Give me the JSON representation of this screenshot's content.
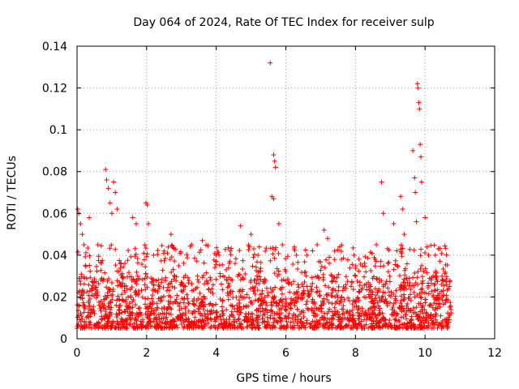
{
  "chart_data": {
    "type": "scatter",
    "title": "Day 064 of 2024, Rate Of TEC Index for receiver sulp",
    "xlabel": "GPS time / hours",
    "ylabel": "ROTI / TECUs",
    "xlim": [
      0,
      12
    ],
    "ylim": [
      0,
      0.14
    ],
    "xticks": [
      "0",
      "2",
      "4",
      "6",
      "8",
      "10",
      "12"
    ],
    "yticks": [
      "0",
      "0.02",
      "0.04",
      "0.06",
      "0.08",
      "0.1",
      "0.12",
      "0.14"
    ],
    "grid": true,
    "marker": "+",
    "color": "#ff0000",
    "series": [
      {
        "name": "ROTI",
        "time_range": [
          0,
          10.75
        ],
        "typical_band": [
          0.005,
          0.03
        ],
        "outliers": [
          [
            0.02,
            0.062
          ],
          [
            0.05,
            0.06
          ],
          [
            0.1,
            0.055
          ],
          [
            0.15,
            0.05
          ],
          [
            0.2,
            0.045
          ],
          [
            0.35,
            0.058
          ],
          [
            0.6,
            0.045
          ],
          [
            0.82,
            0.081
          ],
          [
            0.85,
            0.076
          ],
          [
            0.9,
            0.072
          ],
          [
            0.95,
            0.065
          ],
          [
            1.0,
            0.06
          ],
          [
            1.05,
            0.075
          ],
          [
            1.1,
            0.07
          ],
          [
            1.15,
            0.062
          ],
          [
            1.6,
            0.058
          ],
          [
            1.7,
            0.055
          ],
          [
            1.98,
            0.065
          ],
          [
            2.02,
            0.064
          ],
          [
            2.05,
            0.055
          ],
          [
            2.2,
            0.04
          ],
          [
            2.5,
            0.042
          ],
          [
            2.7,
            0.05
          ],
          [
            3.3,
            0.045
          ],
          [
            3.6,
            0.047
          ],
          [
            4.0,
            0.04
          ],
          [
            4.4,
            0.042
          ],
          [
            4.7,
            0.054
          ],
          [
            5.0,
            0.05
          ],
          [
            5.2,
            0.04
          ],
          [
            5.55,
            0.132
          ],
          [
            5.65,
            0.088
          ],
          [
            5.68,
            0.085
          ],
          [
            5.7,
            0.082
          ],
          [
            5.6,
            0.068
          ],
          [
            5.65,
            0.067
          ],
          [
            5.8,
            0.055
          ],
          [
            5.9,
            0.045
          ],
          [
            6.3,
            0.04
          ],
          [
            6.6,
            0.04
          ],
          [
            6.9,
            0.045
          ],
          [
            7.1,
            0.052
          ],
          [
            7.2,
            0.048
          ],
          [
            7.4,
            0.042
          ],
          [
            7.6,
            0.038
          ],
          [
            8.0,
            0.03
          ],
          [
            8.3,
            0.032
          ],
          [
            8.6,
            0.045
          ],
          [
            8.75,
            0.075
          ],
          [
            8.8,
            0.06
          ],
          [
            9.1,
            0.055
          ],
          [
            9.3,
            0.068
          ],
          [
            9.35,
            0.062
          ],
          [
            9.4,
            0.05
          ],
          [
            9.65,
            0.09
          ],
          [
            9.7,
            0.077
          ],
          [
            9.72,
            0.07
          ],
          [
            9.75,
            0.056
          ],
          [
            9.78,
            0.122
          ],
          [
            9.8,
            0.12
          ],
          [
            9.82,
            0.113
          ],
          [
            9.84,
            0.11
          ],
          [
            9.86,
            0.093
          ],
          [
            9.88,
            0.087
          ],
          [
            9.9,
            0.075
          ],
          [
            10.0,
            0.058
          ],
          [
            10.1,
            0.04
          ],
          [
            10.3,
            0.03
          ],
          [
            10.5,
            0.028
          ],
          [
            10.7,
            0.025
          ]
        ]
      }
    ]
  }
}
